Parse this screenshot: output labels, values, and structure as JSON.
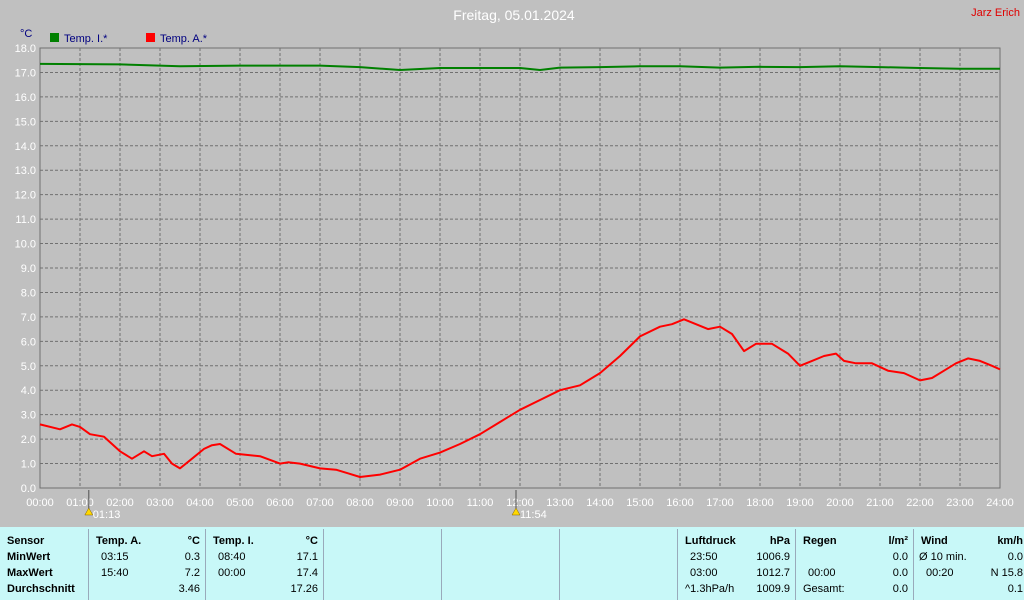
{
  "title": "Freitag, 05.01.2024",
  "author": "Jarz Erich",
  "colors": {
    "inside": "#008000",
    "outside": "#ff0000",
    "grid": "#707070",
    "background": "#c0c0c0",
    "panel": "#c8f8f8"
  },
  "chart_data": {
    "type": "line",
    "title": "Freitag, 05.01.2024",
    "ylabel": "°C",
    "xlabel": "",
    "ylim": [
      0,
      18
    ],
    "xlim": [
      0,
      24
    ],
    "grid": true,
    "legend_position": "top-left",
    "y_ticks": [
      "0.0",
      "1.0",
      "2.0",
      "3.0",
      "4.0",
      "5.0",
      "6.0",
      "7.0",
      "8.0",
      "9.0",
      "10.0",
      "11.0",
      "12.0",
      "13.0",
      "14.0",
      "15.0",
      "16.0",
      "17.0",
      "18.0"
    ],
    "x_ticks": [
      "00:00",
      "01:00",
      "02:00",
      "03:00",
      "04:00",
      "05:00",
      "06:00",
      "07:00",
      "08:00",
      "09:00",
      "10:00",
      "11:00",
      "12:00",
      "13:00",
      "14:00",
      "15:00",
      "16:00",
      "17:00",
      "18:00",
      "19:00",
      "20:00",
      "21:00",
      "22:00",
      "23:00",
      "24:00"
    ],
    "series": [
      {
        "name": "Temp. I.*",
        "x": [
          0,
          2,
          3.5,
          5,
          7,
          8,
          9,
          10,
          11,
          12,
          12.5,
          13,
          14,
          15,
          16,
          17,
          18,
          19,
          20,
          21,
          22,
          23,
          24
        ],
        "values": [
          17.35,
          17.33,
          17.25,
          17.28,
          17.28,
          17.22,
          17.1,
          17.18,
          17.18,
          17.18,
          17.1,
          17.2,
          17.22,
          17.25,
          17.25,
          17.2,
          17.23,
          17.22,
          17.25,
          17.22,
          17.18,
          17.15,
          17.15
        ]
      },
      {
        "name": "Temp. A.*",
        "x": [
          0,
          0.5,
          0.8,
          1,
          1.25,
          1.6,
          2,
          2.3,
          2.6,
          2.8,
          3.1,
          3.3,
          3.5,
          3.8,
          4.1,
          4.3,
          4.5,
          4.9,
          5.5,
          6,
          6.2,
          6.5,
          7,
          7.4,
          7.7,
          8,
          8.5,
          9,
          9.5,
          10,
          10.5,
          11,
          11.5,
          12,
          12.5,
          13,
          13.5,
          14,
          14.5,
          15,
          15.5,
          15.8,
          16.1,
          16.4,
          16.7,
          17,
          17.3,
          17.6,
          17.9,
          18.3,
          18.7,
          19,
          19.3,
          19.6,
          19.9,
          20.1,
          20.4,
          20.8,
          21.2,
          21.6,
          22,
          22.3,
          22.6,
          22.9,
          23.2,
          23.5,
          23.8,
          24
        ],
        "values": [
          2.6,
          2.4,
          2.6,
          2.5,
          2.2,
          2.1,
          1.5,
          1.2,
          1.5,
          1.3,
          1.4,
          1.0,
          0.8,
          1.2,
          1.6,
          1.75,
          1.8,
          1.4,
          1.3,
          1.0,
          1.05,
          1.0,
          0.8,
          0.75,
          0.6,
          0.45,
          0.55,
          0.75,
          1.2,
          1.45,
          1.8,
          2.2,
          2.7,
          3.2,
          3.6,
          4.0,
          4.2,
          4.7,
          5.4,
          6.2,
          6.6,
          6.7,
          6.9,
          6.7,
          6.5,
          6.6,
          6.3,
          5.6,
          5.9,
          5.9,
          5.5,
          5.0,
          5.2,
          5.4,
          5.5,
          5.2,
          5.1,
          5.1,
          4.8,
          4.7,
          4.4,
          4.5,
          4.8,
          5.1,
          5.3,
          5.2,
          5.0,
          4.85
        ]
      }
    ],
    "sun_markers": [
      {
        "x": 1.22,
        "label": "01:13"
      },
      {
        "x": 11.9,
        "label": "11:54"
      }
    ]
  },
  "stats": {
    "sensor": {
      "header": "Sensor",
      "rows": [
        "MinWert",
        "MaxWert",
        "Durchschnitt"
      ]
    },
    "temp_a": {
      "header": "Temp. A.",
      "unit": "°C",
      "times": [
        "03:15",
        "15:40",
        ""
      ],
      "values": [
        "0.3",
        "7.2",
        "3.46"
      ]
    },
    "temp_i": {
      "header": "Temp. I.",
      "unit": "°C",
      "times": [
        "08:40",
        "00:00",
        ""
      ],
      "values": [
        "17.1",
        "17.4",
        "17.26"
      ]
    },
    "luftdruck": {
      "header": "Luftdruck",
      "unit": "hPa",
      "times": [
        "23:50",
        "03:00",
        "^1.3hPa/h"
      ],
      "values": [
        "1006.9",
        "1012.7",
        "1009.9"
      ]
    },
    "regen": {
      "header": "Regen",
      "unit": "l/m²",
      "times": [
        "",
        "00:00",
        "Gesamt:"
      ],
      "values": [
        "0.0",
        "0.0",
        "0.0"
      ]
    },
    "wind": {
      "header": "Wind",
      "unit": "km/h",
      "times": [
        "Ø 10 min.",
        "00:20",
        ""
      ],
      "values": [
        "0.0",
        "N 15.8",
        "0.1"
      ]
    }
  }
}
